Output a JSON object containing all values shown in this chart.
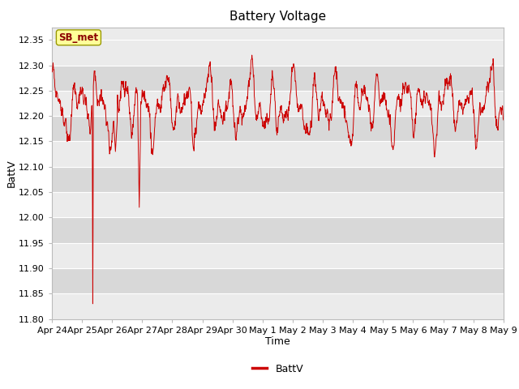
{
  "title": "Battery Voltage",
  "xlabel": "Time",
  "ylabel": "BattV",
  "ylim": [
    11.8,
    12.375
  ],
  "line_color": "#cc0000",
  "background_plot_light": "#ebebeb",
  "background_plot_dark": "#d8d8d8",
  "background_fig": "#ffffff",
  "legend_label": "BattV",
  "legend_box_color": "#ffff99",
  "legend_box_text": "SB_met",
  "x_tick_labels": [
    "Apr 24",
    "Apr 25",
    "Apr 26",
    "Apr 27",
    "Apr 28",
    "Apr 29",
    "Apr 30",
    "May 1",
    "May 2",
    "May 3",
    "May 4",
    "May 5",
    "May 6",
    "May 7",
    "May 8",
    "May 9"
  ],
  "yticks": [
    11.8,
    11.85,
    11.9,
    11.95,
    12.0,
    12.05,
    12.1,
    12.15,
    12.2,
    12.25,
    12.3,
    12.35
  ],
  "title_fontsize": 11,
  "axis_fontsize": 9,
  "tick_fontsize": 8
}
